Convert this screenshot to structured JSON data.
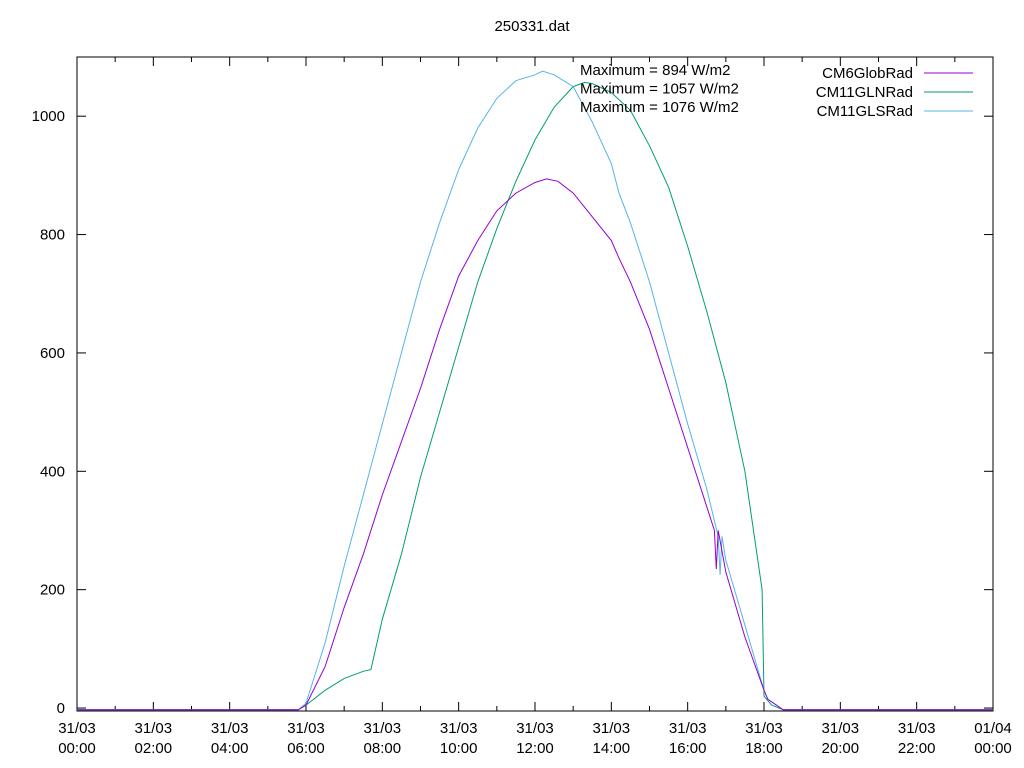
{
  "chart_data": {
    "type": "line",
    "title": "250331.dat",
    "xlabel": "",
    "ylabel": "",
    "x_unit": "hours since 31/03 00:00",
    "xlim": [
      0,
      24
    ],
    "ylim": [
      -5,
      1100
    ],
    "yticks": [
      0,
      200,
      400,
      600,
      800,
      1000
    ],
    "xticks": [
      {
        "date": "31/03",
        "time": "00:00"
      },
      {
        "date": "31/03",
        "time": "02:00"
      },
      {
        "date": "31/03",
        "time": "04:00"
      },
      {
        "date": "31/03",
        "time": "06:00"
      },
      {
        "date": "31/03",
        "time": "08:00"
      },
      {
        "date": "31/03",
        "time": "10:00"
      },
      {
        "date": "31/03",
        "time": "12:00"
      },
      {
        "date": "31/03",
        "time": "14:00"
      },
      {
        "date": "31/03",
        "time": "16:00"
      },
      {
        "date": "31/03",
        "time": "18:00"
      },
      {
        "date": "31/03",
        "time": "20:00"
      },
      {
        "date": "31/03",
        "time": "22:00"
      },
      {
        "date": "01/04",
        "time": "00:00"
      }
    ],
    "grid": false,
    "legend_position": "top-right",
    "annotations": [
      "Maximum = 894 W/m2",
      "Maximum = 1057 W/m2",
      "Maximum = 1076 W/m2"
    ],
    "series": [
      {
        "name": "CM6GlobRad",
        "color": "#9400d3",
        "points": [
          [
            0,
            -3
          ],
          [
            5.8,
            -3
          ],
          [
            6.0,
            5
          ],
          [
            6.5,
            70
          ],
          [
            7.0,
            170
          ],
          [
            7.5,
            260
          ],
          [
            8.0,
            360
          ],
          [
            8.5,
            450
          ],
          [
            9.0,
            540
          ],
          [
            9.5,
            640
          ],
          [
            10.0,
            730
          ],
          [
            10.5,
            790
          ],
          [
            11.0,
            840
          ],
          [
            11.5,
            870
          ],
          [
            12.0,
            888
          ],
          [
            12.3,
            894
          ],
          [
            12.6,
            890
          ],
          [
            13.0,
            870
          ],
          [
            13.5,
            830
          ],
          [
            14.0,
            790
          ],
          [
            14.2,
            760
          ],
          [
            14.5,
            720
          ],
          [
            15.0,
            640
          ],
          [
            15.5,
            540
          ],
          [
            16.0,
            440
          ],
          [
            16.5,
            340
          ],
          [
            16.7,
            300
          ],
          [
            16.75,
            235
          ],
          [
            16.8,
            300
          ],
          [
            17.0,
            230
          ],
          [
            17.5,
            120
          ],
          [
            18.0,
            30
          ],
          [
            18.1,
            15
          ],
          [
            18.5,
            -3
          ],
          [
            24,
            -3
          ]
        ]
      },
      {
        "name": "CM11GLNRad",
        "color": "#009e73",
        "points": [
          [
            0,
            -3
          ],
          [
            5.8,
            -3
          ],
          [
            6.0,
            5
          ],
          [
            6.5,
            30
          ],
          [
            7.0,
            50
          ],
          [
            7.5,
            62
          ],
          [
            7.7,
            65
          ],
          [
            8.0,
            150
          ],
          [
            8.5,
            260
          ],
          [
            9.0,
            390
          ],
          [
            9.5,
            500
          ],
          [
            10.0,
            610
          ],
          [
            10.5,
            720
          ],
          [
            11.0,
            810
          ],
          [
            11.5,
            890
          ],
          [
            12.0,
            960
          ],
          [
            12.5,
            1015
          ],
          [
            13.0,
            1050
          ],
          [
            13.3,
            1057
          ],
          [
            13.5,
            1055
          ],
          [
            14.0,
            1040
          ],
          [
            14.5,
            1010
          ],
          [
            15.0,
            950
          ],
          [
            15.5,
            880
          ],
          [
            16.0,
            780
          ],
          [
            16.5,
            670
          ],
          [
            17.0,
            550
          ],
          [
            17.5,
            400
          ],
          [
            17.95,
            200
          ],
          [
            18.0,
            20
          ],
          [
            18.2,
            5
          ],
          [
            18.5,
            -3
          ],
          [
            24,
            -3
          ]
        ]
      },
      {
        "name": "CM11GLSRad",
        "color": "#56b4e9",
        "points": [
          [
            0,
            -3
          ],
          [
            5.8,
            -3
          ],
          [
            6.0,
            8
          ],
          [
            6.5,
            110
          ],
          [
            7.0,
            240
          ],
          [
            7.5,
            360
          ],
          [
            8.0,
            480
          ],
          [
            8.5,
            600
          ],
          [
            9.0,
            720
          ],
          [
            9.5,
            820
          ],
          [
            10.0,
            910
          ],
          [
            10.5,
            980
          ],
          [
            11.0,
            1030
          ],
          [
            11.5,
            1060
          ],
          [
            12.0,
            1070
          ],
          [
            12.2,
            1076
          ],
          [
            12.5,
            1070
          ],
          [
            13.0,
            1050
          ],
          [
            13.5,
            990
          ],
          [
            14.0,
            920
          ],
          [
            14.2,
            870
          ],
          [
            14.5,
            820
          ],
          [
            15.0,
            720
          ],
          [
            15.5,
            600
          ],
          [
            16.0,
            480
          ],
          [
            16.5,
            370
          ],
          [
            16.8,
            290
          ],
          [
            16.85,
            225
          ],
          [
            16.9,
            290
          ],
          [
            17.0,
            250
          ],
          [
            17.5,
            140
          ],
          [
            18.0,
            30
          ],
          [
            18.1,
            15
          ],
          [
            18.5,
            -3
          ],
          [
            24,
            -3
          ]
        ]
      }
    ]
  }
}
